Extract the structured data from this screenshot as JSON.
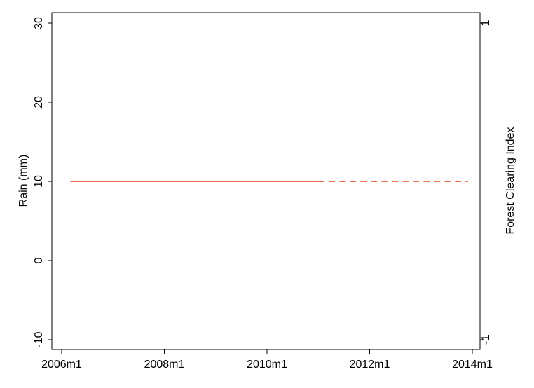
{
  "chart_data": {
    "type": "line",
    "title": "",
    "xlabel": "",
    "ylabel": "Rain (mm)",
    "y2label": "Forest Clearing Index",
    "x_ticks": [
      "2006m1",
      "2008m1",
      "2010m1",
      "2012m1",
      "2014m1"
    ],
    "xlim": [
      "2006m1",
      "2014m1"
    ],
    "y_ticks": [
      "-10",
      "0",
      "10",
      "20",
      "30"
    ],
    "ylim": [
      -10,
      30
    ],
    "y2_ticks": [
      "-1",
      "1"
    ],
    "y2lim": [
      -1,
      1
    ],
    "grid": false,
    "legend": "none",
    "series": [
      {
        "axis": "left",
        "style": "solid",
        "color": "#e8401c",
        "points": [
          [
            "2006m3",
            10
          ],
          [
            "2011m1",
            10
          ]
        ]
      },
      {
        "axis": "left",
        "style": "dashed",
        "color": "#e8401c",
        "points": [
          [
            "2011m1",
            10
          ],
          [
            "2013m12",
            10
          ]
        ]
      }
    ]
  }
}
